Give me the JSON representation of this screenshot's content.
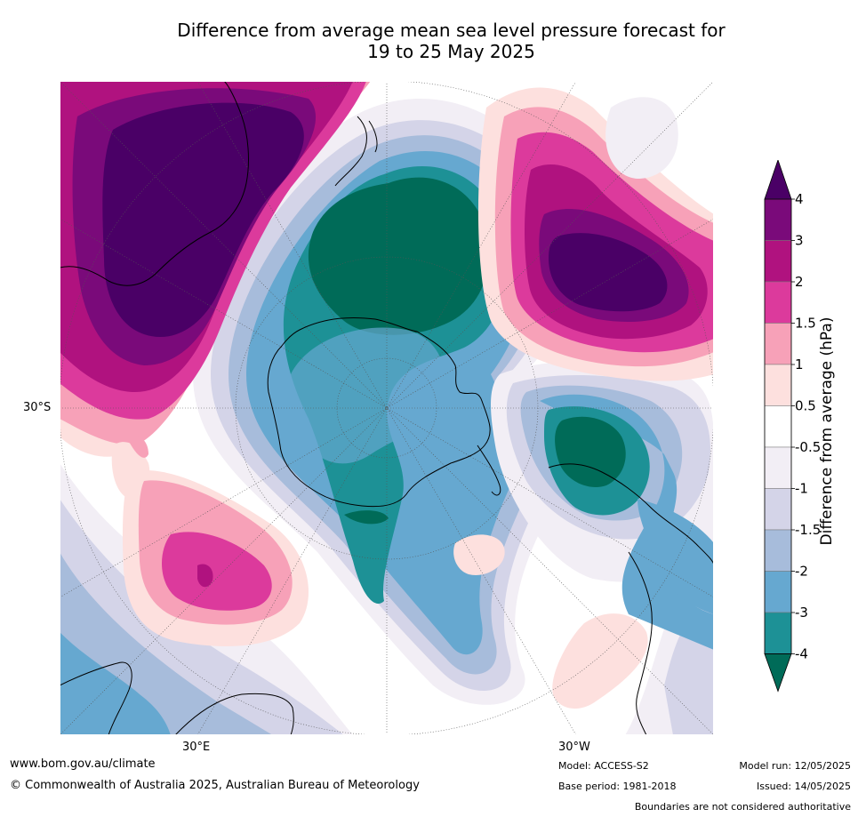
{
  "title": {
    "line1": "Difference from average mean sea level pressure forecast for",
    "line2": "19 to 25 May 2025"
  },
  "map": {
    "projection": "south polar stereographic",
    "graticule_labels": {
      "lat": "30°S",
      "lon_east": "30°E",
      "lon_west": "30°W"
    },
    "regions_shown": [
      "Antarctica",
      "Australia",
      "New Zealand",
      "South America",
      "southern Africa"
    ]
  },
  "legend": {
    "title": "Difference from average (hPa)",
    "tick_labels": [
      "4",
      "3",
      "2",
      "1.5",
      "1",
      "0.5",
      "-0.5",
      "-1",
      "-1.5",
      "-2",
      "-3",
      "-4"
    ],
    "bins": [
      {
        "range": "> 4",
        "color": "#4a0066"
      },
      {
        "range": "3 to 4",
        "color": "#7a0a7a"
      },
      {
        "range": "2 to 3",
        "color": "#b0127f"
      },
      {
        "range": "1.5 to 2",
        "color": "#dc3a9c"
      },
      {
        "range": "1 to 1.5",
        "color": "#f7a1b8"
      },
      {
        "range": "0.5 to 1",
        "color": "#fde0de"
      },
      {
        "range": "-0.5 to 0.5",
        "color": "#ffffff"
      },
      {
        "range": "-1 to -0.5",
        "color": "#f2eef5"
      },
      {
        "range": "-1.5 to -1",
        "color": "#d4d4e8"
      },
      {
        "range": "-2 to -1.5",
        "color": "#a7bcdb"
      },
      {
        "range": "-3 to -2",
        "color": "#66a8d0"
      },
      {
        "range": "-4 to -3",
        "color": "#1d9196"
      },
      {
        "range": "< -4",
        "color": "#006b58"
      }
    ]
  },
  "footer": {
    "website": "www.bom.gov.au/climate",
    "copyright": "© Commonwealth of Australia 2025, Australian Bureau of Meteorology",
    "model": "Model: ACCESS-S2",
    "base_period": "Base period: 1981-2018",
    "model_run": "Model run: 12/05/2025",
    "issued": "Issued: 14/05/2025",
    "disclaimer": "Boundaries are not considered authoritative"
  }
}
